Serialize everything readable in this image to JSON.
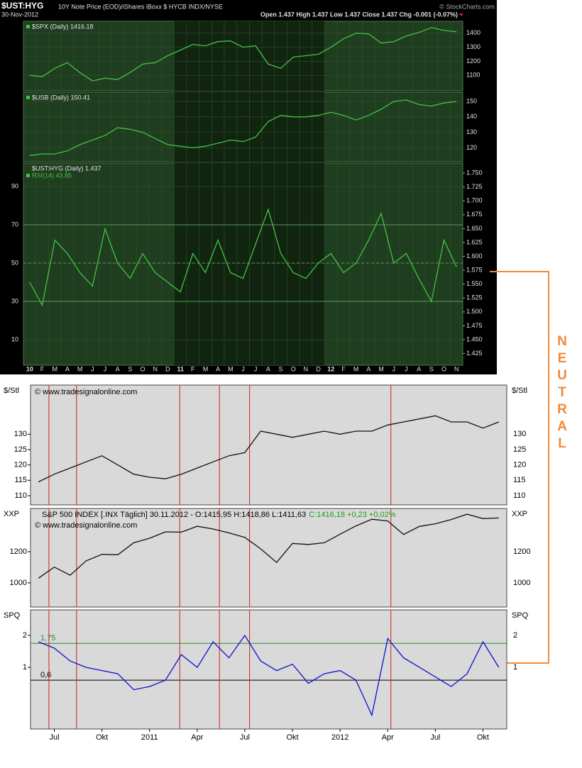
{
  "header": {
    "symbol": "$UST:HYG",
    "description": "10Y Note Price (EOD)/iShares iBoxx $ HYCB INDX/NYSE",
    "date": "30-Nov-2012",
    "quote": "Open 1.437 High 1.437 Low 1.437 Close 1.437 Chg -0.001 (-0.07%)",
    "source": "© StockCharts.com"
  },
  "annotation": "NEUTRAL",
  "chart_data": [
    {
      "type": "line",
      "series": [
        {
          "name": "$SPX (Daily) 1416.18",
          "color": "#46c046",
          "values": [
            1100,
            1090,
            1150,
            1190,
            1120,
            1060,
            1080,
            1070,
            1120,
            1180,
            1190,
            1240,
            1280,
            1320,
            1310,
            1340,
            1345,
            1300,
            1310,
            1180,
            1150,
            1230,
            1240,
            1250,
            1300,
            1360,
            1400,
            1395,
            1330,
            1340,
            1380,
            1405,
            1440,
            1420,
            1410
          ]
        }
      ],
      "ylim": [
        990,
        1485
      ],
      "yticks": [
        1100,
        1200,
        1300,
        1400
      ],
      "shaded_band": [
        12,
        24
      ]
    },
    {
      "type": "line",
      "series": [
        {
          "name": "$USB (Daily) 150.41",
          "color": "#46c046",
          "values": [
            115,
            116,
            116,
            118,
            122,
            125,
            128,
            133,
            132,
            130,
            126,
            122,
            121,
            120,
            121,
            123,
            125,
            124,
            127,
            137,
            141,
            140,
            140,
            141,
            143,
            141,
            138,
            141,
            145,
            150,
            151,
            148,
            147,
            149,
            150
          ]
        }
      ],
      "ylim": [
        111,
        156
      ],
      "yticks": [
        120,
        130,
        140,
        150
      ],
      "shaded_band": [
        12,
        24
      ]
    },
    {
      "type": "line",
      "title": "$UST:HYG (Daily) 1.437",
      "categories": [
        "10",
        "F",
        "M",
        "A",
        "M",
        "J",
        "J",
        "A",
        "S",
        "O",
        "N",
        "D",
        "11",
        "F",
        "M",
        "A",
        "M",
        "J",
        "J",
        "A",
        "S",
        "O",
        "N",
        "D",
        "12",
        "F",
        "M",
        "A",
        "M",
        "J",
        "J",
        "A",
        "S",
        "O",
        "N"
      ],
      "series": [
        {
          "name": "RSI(14) 43.85",
          "color": "#46c046",
          "values": [
            40,
            28,
            62,
            55,
            45,
            38,
            68,
            50,
            42,
            55,
            45,
            40,
            35,
            55,
            45,
            62,
            45,
            42,
            60,
            78,
            55,
            45,
            42,
            50,
            55,
            45,
            50,
            62,
            76,
            50,
            55,
            42,
            30,
            62,
            48
          ]
        }
      ],
      "ylim": [
        -3.3,
        102.2
      ],
      "yticks": [
        10,
        30,
        50,
        70,
        90
      ],
      "ref_lines": [
        30,
        50,
        70
      ],
      "y2lim": [
        1.404,
        1.768
      ],
      "y2ticks": [
        1.425,
        {
          "value": 1.45,
          "label": "1.450"
        },
        1.475,
        {
          "value": 1.5,
          "label": "1.500"
        },
        1.525,
        {
          "value": 1.55,
          "label": "1.550"
        },
        1.575,
        {
          "value": 1.6,
          "label": "1.600"
        },
        1.625,
        {
          "value": 1.65,
          "label": "1.650"
        },
        1.675,
        {
          "value": 1.7,
          "label": "1.700"
        },
        1.725,
        {
          "value": 1.75,
          "label": "1.750"
        }
      ],
      "shaded_band": [
        12,
        24
      ]
    },
    {
      "type": "line",
      "ylabel": "$/Stl",
      "watermark": "© www.tradesignalonline.com",
      "color": "#111111",
      "values": [
        114.5,
        117,
        119,
        121,
        123,
        120,
        117,
        116,
        115.5,
        117,
        119,
        121,
        123,
        124,
        131,
        130,
        129,
        130,
        131,
        130,
        131,
        131,
        133,
        134,
        135,
        136,
        134,
        134,
        132,
        134
      ],
      "ylim": [
        107,
        146
      ],
      "yticks": [
        110,
        115,
        120,
        125,
        130
      ],
      "signal_lines": [
        1.16,
        2.9,
        9.4,
        11.9,
        13.8,
        22.7
      ]
    },
    {
      "type": "line",
      "ylabel": "XXP",
      "watermark": "© www.tradesignalonline.com",
      "title": "S&P 500 INDEX [.INX  Täglich] 30.11.2012 - O:1415,95 H:1418,86 L:1411,63",
      "title_change": "C:1416,18 +0,23 +0,02%",
      "color": "#111111",
      "values": [
        1030,
        1101,
        1049,
        1141,
        1183,
        1180,
        1257,
        1286,
        1327,
        1325,
        1363,
        1345,
        1320,
        1292,
        1218,
        1131,
        1253,
        1246,
        1257,
        1312,
        1365,
        1408,
        1397,
        1310,
        1362,
        1379,
        1406,
        1440,
        1412,
        1416
      ],
      "ylim": [
        845,
        1477
      ],
      "yticks": [
        1000,
        1200
      ],
      "signal_lines": [
        1.16,
        2.9,
        9.4,
        11.9,
        13.8,
        22.7
      ]
    },
    {
      "type": "line",
      "ylabel": "SPQ",
      "color": "#1010d0",
      "categories": [
        null,
        "Jul",
        null,
        null,
        "Okt",
        null,
        null,
        "2011",
        null,
        null,
        "Apr",
        null,
        null,
        "Jul",
        null,
        null,
        "Okt",
        null,
        null,
        "2012",
        null,
        null,
        "Apr",
        null,
        null,
        "Jul",
        null,
        null,
        "Okt",
        null
      ],
      "values": [
        1.8,
        1.6,
        1.2,
        1.0,
        0.9,
        0.8,
        0.3,
        0.4,
        0.6,
        1.4,
        1.0,
        1.8,
        1.3,
        2.0,
        1.2,
        0.9,
        1.1,
        0.5,
        0.8,
        0.9,
        0.6,
        -0.5,
        1.9,
        1.3,
        1.0,
        0.7,
        0.4,
        0.8,
        1.8,
        1.0
      ],
      "ylim": [
        -0.93,
        2.8
      ],
      "yticks": [
        1,
        2
      ],
      "levels": [
        {
          "value": 1.75,
          "label": "1,75"
        },
        {
          "value": 0.6,
          "label": "0,6"
        }
      ],
      "signal_lines": [
        1.16,
        2.9,
        9.4,
        11.9,
        13.8,
        22.7
      ]
    }
  ]
}
